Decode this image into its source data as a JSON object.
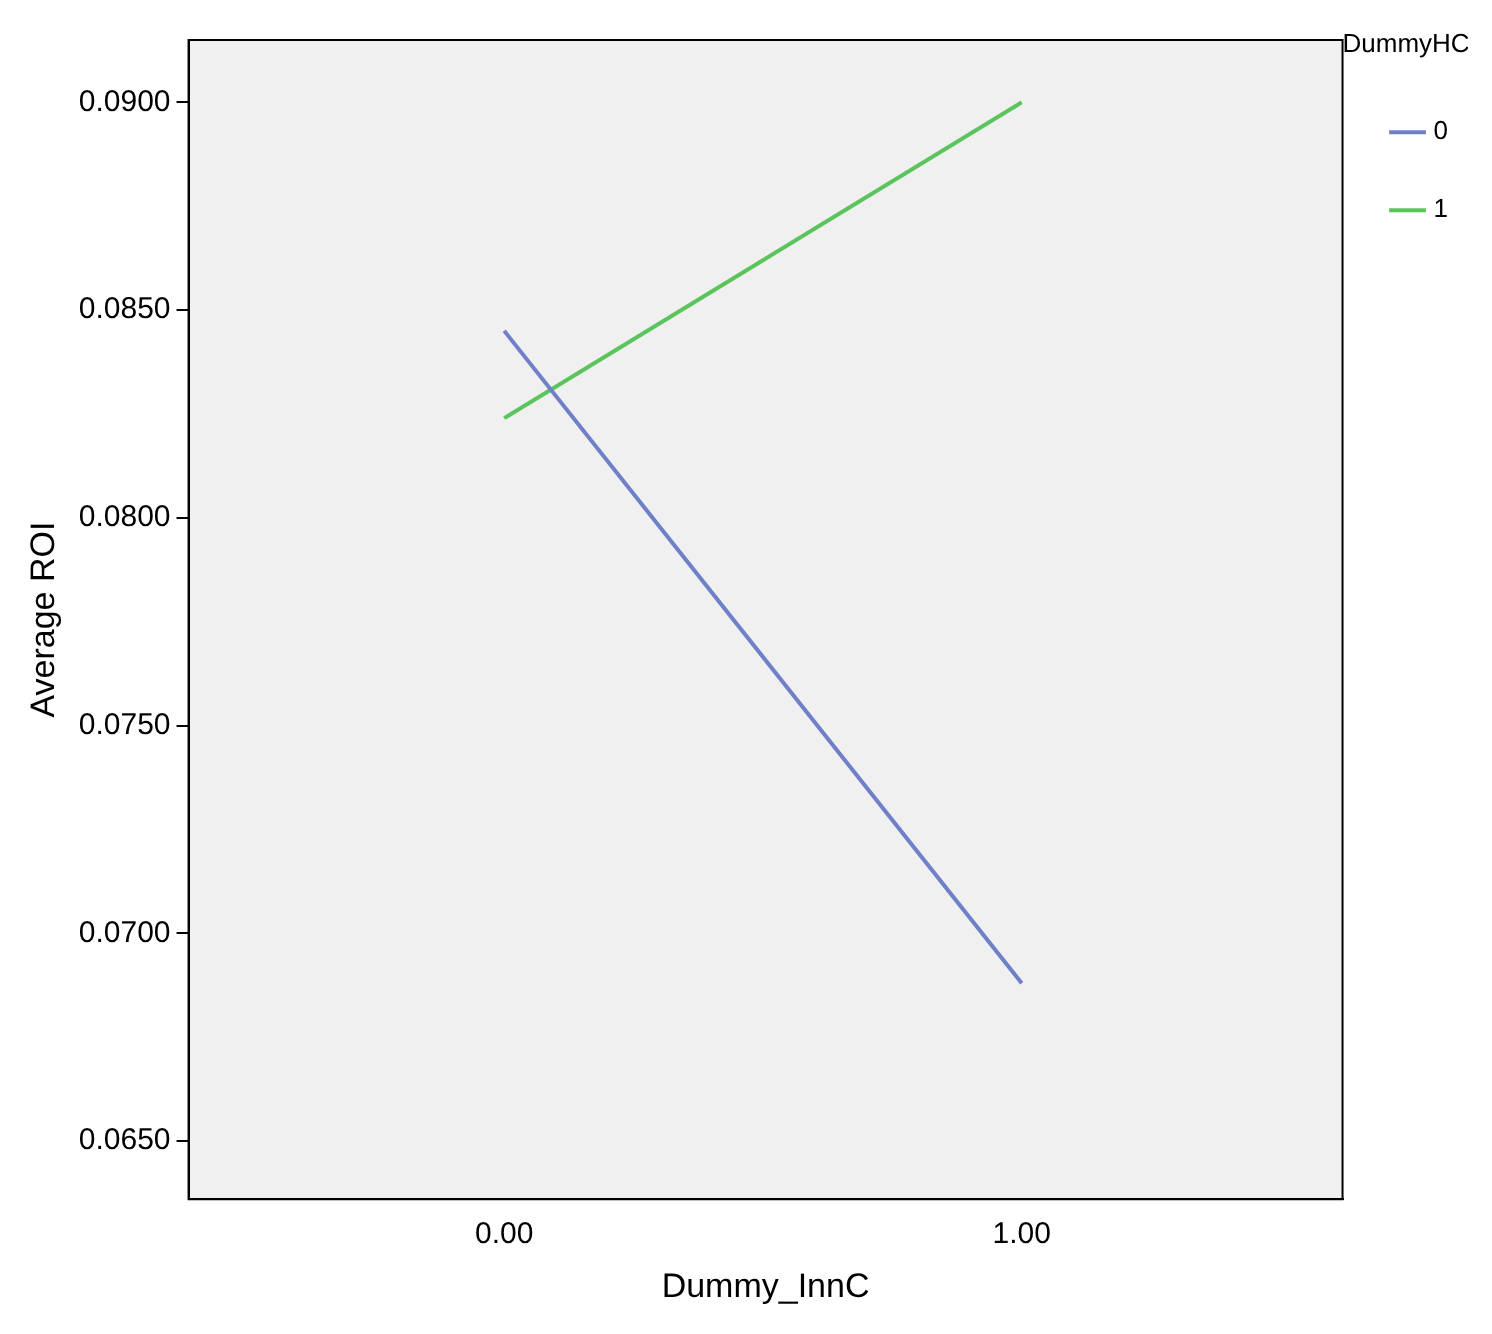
{
  "chart_data": {
    "type": "line",
    "xlabel": "Dummy_InnC",
    "ylabel": "Average ROI",
    "legend_title": "DummyHC",
    "legend": "top right",
    "grid": false,
    "marker": "none",
    "x": [
      0,
      1
    ],
    "xlim": [
      -0.61,
      1.62
    ],
    "xticks": [
      {
        "value": 0,
        "label": "0.00"
      },
      {
        "value": 1,
        "label": "1.00"
      }
    ],
    "ylim": [
      0.0636,
      0.0915
    ],
    "yticks": [
      {
        "value": 0.065,
        "label": "0.0650"
      },
      {
        "value": 0.07,
        "label": "0.0700"
      },
      {
        "value": 0.075,
        "label": "0.0750"
      },
      {
        "value": 0.08,
        "label": "0.0800"
      },
      {
        "value": 0.085,
        "label": "0.0850"
      },
      {
        "value": 0.09,
        "label": "0.0900"
      }
    ],
    "series": [
      {
        "name": "0",
        "color": "#7080c8",
        "values": [
          0.0845,
          0.0688
        ]
      },
      {
        "name": "1",
        "color": "#5cc45c",
        "values": [
          0.0824,
          0.09
        ]
      }
    ]
  }
}
